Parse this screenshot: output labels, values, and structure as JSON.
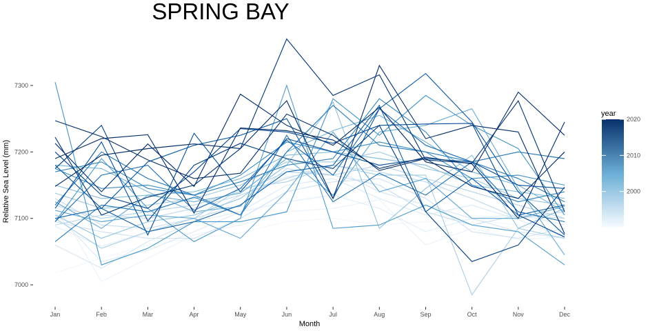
{
  "chart_data": {
    "type": "line",
    "title": "SPRING BAY",
    "xlabel": "Month",
    "ylabel": "Relative Sea Level (mm)",
    "categories": [
      "Jan",
      "Feb",
      "Mar",
      "Apr",
      "May",
      "Jun",
      "Jul",
      "Aug",
      "Sep",
      "Oct",
      "Nov",
      "Dec"
    ],
    "yticks": [
      7000,
      7100,
      7200,
      7300
    ],
    "ylim": [
      6970,
      7385
    ],
    "grid": false,
    "legend": {
      "title": "year",
      "position": "right",
      "ticks": [
        2000,
        2010,
        2020
      ],
      "range": [
        1990,
        2020
      ],
      "color_low": "#f7fbff",
      "color_high": "#08306b"
    },
    "series": [
      {
        "year": 1991,
        "values": [
          7018,
          7040,
          7060,
          7070,
          7078,
          7095,
          7100,
          7090,
          7095,
          7098,
          7090,
          7075
        ]
      },
      {
        "year": 1992,
        "values": [
          7125,
          7005,
          7040,
          7075,
          7090,
          7110,
          7115,
          7128,
          7060,
          7085,
          7068,
          7072
        ]
      },
      {
        "year": 1993,
        "values": [
          7088,
          7058,
          7080,
          7095,
          7110,
          7125,
          7135,
          7115,
          7080,
          7100,
          7106,
          7090
        ]
      },
      {
        "year": 1994,
        "values": [
          7108,
          7035,
          7052,
          7080,
          7110,
          7150,
          7160,
          7130,
          7105,
          7120,
          7098,
          7072
        ]
      },
      {
        "year": 1995,
        "values": [
          7060,
          7025,
          7065,
          7095,
          7135,
          7162,
          7175,
          7140,
          7120,
          7100,
          7080,
          7070
        ]
      },
      {
        "year": 1996,
        "values": [
          7095,
          7080,
          7070,
          7070,
          7100,
          7140,
          7155,
          7160,
          7130,
          7080,
          7070,
          7085
        ]
      },
      {
        "year": 1997,
        "values": [
          7130,
          7090,
          7085,
          7100,
          7120,
          7175,
          7165,
          7150,
          7110,
          7090,
          7105,
          7100
        ]
      },
      {
        "year": 1998,
        "values": [
          7090,
          7105,
          7100,
          7115,
          7135,
          7160,
          7180,
          7170,
          7155,
          7130,
          7100,
          7110
        ]
      },
      {
        "year": 1999,
        "values": [
          7120,
          7100,
          7110,
          7120,
          7140,
          7170,
          7165,
          7180,
          7160,
          7140,
          7120,
          7100
        ]
      },
      {
        "year": 2000,
        "values": [
          7100,
          7055,
          7080,
          7100,
          7145,
          7155,
          7180,
          7165,
          7165,
          6985,
          7085,
          7070
        ]
      },
      {
        "year": 2001,
        "values": [
          7138,
          7115,
          7120,
          7130,
          7150,
          7185,
          7185,
          7200,
          7175,
          7160,
          7130,
          7120
        ]
      },
      {
        "year": 2002,
        "values": [
          7105,
          7070,
          7095,
          7105,
          7130,
          7180,
          7275,
          7085,
          7145,
          7195,
          7085,
          7115
        ]
      },
      {
        "year": 2003,
        "values": [
          7150,
          7130,
          7135,
          7140,
          7160,
          7195,
          7200,
          7190,
          7180,
          7150,
          7140,
          7130
        ]
      },
      {
        "year": 2004,
        "values": [
          7180,
          7175,
          7140,
          7110,
          7118,
          7200,
          7232,
          7255,
          7215,
          7170,
          7150,
          7110
        ]
      },
      {
        "year": 2005,
        "values": [
          7125,
          7085,
          7135,
          7125,
          7138,
          7190,
          7135,
          7230,
          7240,
          7265,
          7145,
          7045
        ]
      },
      {
        "year": 2006,
        "values": [
          7112,
          7095,
          7105,
          7100,
          7070,
          7140,
          7230,
          7140,
          7160,
          7100,
          7100,
          7118
        ]
      },
      {
        "year": 2007,
        "values": [
          7095,
          7190,
          7115,
          7065,
          7100,
          7300,
          7085,
          7090,
          7120,
          7090,
          7080,
          7030
        ]
      },
      {
        "year": 2008,
        "values": [
          7305,
          7030,
          7055,
          7095,
          7095,
          7110,
          7280,
          7225,
          7285,
          7240,
          7205,
          7105
        ]
      },
      {
        "year": 2009,
        "values": [
          7175,
          7145,
          7150,
          7135,
          7165,
          7215,
          7200,
          7215,
          7200,
          7160,
          7165,
          7150
        ]
      },
      {
        "year": 2010,
        "values": [
          7170,
          7185,
          7145,
          7135,
          7155,
          7180,
          7190,
          7280,
          7230,
          7150,
          7125,
          7140
        ]
      },
      {
        "year": 2011,
        "values": [
          7065,
          7120,
          7110,
          7132,
          7105,
          7200,
          7270,
          7210,
          7200,
          7185,
          7160,
          7125
        ]
      },
      {
        "year": 2012,
        "values": [
          7120,
          7200,
          7160,
          7135,
          7105,
          7225,
          7125,
          7168,
          7135,
          7185,
          7200,
          7190
        ]
      },
      {
        "year": 2013,
        "values": [
          7095,
          7165,
          7180,
          7112,
          7145,
          7218,
          7165,
          7265,
          7210,
          7185,
          7110,
          7095
        ]
      },
      {
        "year": 2014,
        "values": [
          7100,
          7115,
          7080,
          7095,
          7120,
          7170,
          7180,
          7270,
          7110,
          7160,
          7105,
          7120
        ]
      },
      {
        "year": 2015,
        "values": [
          7180,
          7115,
          7185,
          7210,
          7225,
          7250,
          7130,
          7265,
          7318,
          7245,
          7140,
          7075
        ]
      },
      {
        "year": 2016,
        "values": [
          7115,
          7215,
          7075,
          7228,
          7140,
          7220,
          7200,
          7180,
          7190,
          7185,
          7150,
          7145
        ]
      },
      {
        "year": 2017,
        "values": [
          7200,
          7135,
          7115,
          7170,
          7235,
          7230,
          7213,
          7240,
          7242,
          7243,
          7105,
          7072
        ]
      },
      {
        "year": 2018,
        "values": [
          7175,
          7240,
          7096,
          7180,
          7213,
          7190,
          7175,
          7240,
          7110,
          7035,
          7060,
          7147
        ]
      },
      {
        "year": 2019,
        "values": [
          7222,
          7105,
          7132,
          7150,
          7205,
          7370,
          7285,
          7316,
          7188,
          7183,
          7277,
          7110
        ]
      },
      {
        "year": 2020,
        "values": [
          7148,
          7195,
          7205,
          7212,
          7205,
          7277,
          7130,
          7330,
          7220,
          7240,
          7230,
          7077
        ]
      },
      {
        "year": 2021,
        "values": [
          7213,
          7140,
          7212,
          7148,
          7287,
          7240,
          7210,
          7267,
          7185,
          7170,
          7290,
          7225
        ]
      },
      {
        "year": 2022,
        "values": [
          7190,
          7220,
          7226,
          7108,
          7236,
          7232,
          7218,
          7175,
          7192,
          7182,
          7100,
          7245
        ]
      },
      {
        "year": 2023,
        "values": [
          7247,
          7223,
          7188,
          7160,
          7168,
          7257,
          7225,
          7172,
          7190,
          7148,
          7130,
          7200
        ]
      }
    ]
  }
}
